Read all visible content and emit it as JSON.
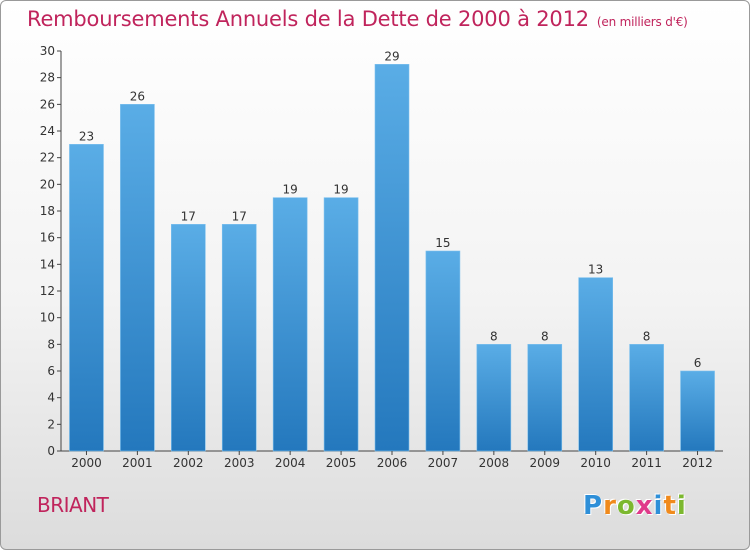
{
  "header": {
    "title": "Remboursements Annuels de la Dette de 2000 à 2012",
    "subtitle": "(en milliers d'€)"
  },
  "location": "BRIANT",
  "logo": {
    "text": "Proxiti",
    "letters": [
      {
        "char": "P",
        "color": "#2e8fd8"
      },
      {
        "char": "r",
        "color": "#f08a1c"
      },
      {
        "char": "o",
        "color": "#7cb82f"
      },
      {
        "char": "x",
        "color": "#e03a8a"
      },
      {
        "char": "i",
        "color": "#2e8fd8"
      },
      {
        "char": "t",
        "color": "#f08a1c"
      },
      {
        "char": "i",
        "color": "#7cb82f"
      }
    ]
  },
  "colors": {
    "title": "#c0245c",
    "bar_top": "#5aade6",
    "bar_bottom": "#2478bd"
  },
  "chart_data": {
    "type": "bar",
    "title": "Remboursements Annuels de la Dette de 2000 à 2012",
    "categories": [
      "2000",
      "2001",
      "2002",
      "2003",
      "2004",
      "2005",
      "2006",
      "2007",
      "2008",
      "2009",
      "2010",
      "2011",
      "2012"
    ],
    "values": [
      23,
      26,
      17,
      17,
      19,
      19,
      29,
      15,
      8,
      8,
      13,
      8,
      6
    ],
    "ylim": [
      0,
      30
    ],
    "yticks": [
      0,
      2,
      4,
      6,
      8,
      10,
      12,
      14,
      16,
      18,
      20,
      22,
      24,
      26,
      28,
      30
    ],
    "grid": false,
    "data_labels": true
  }
}
